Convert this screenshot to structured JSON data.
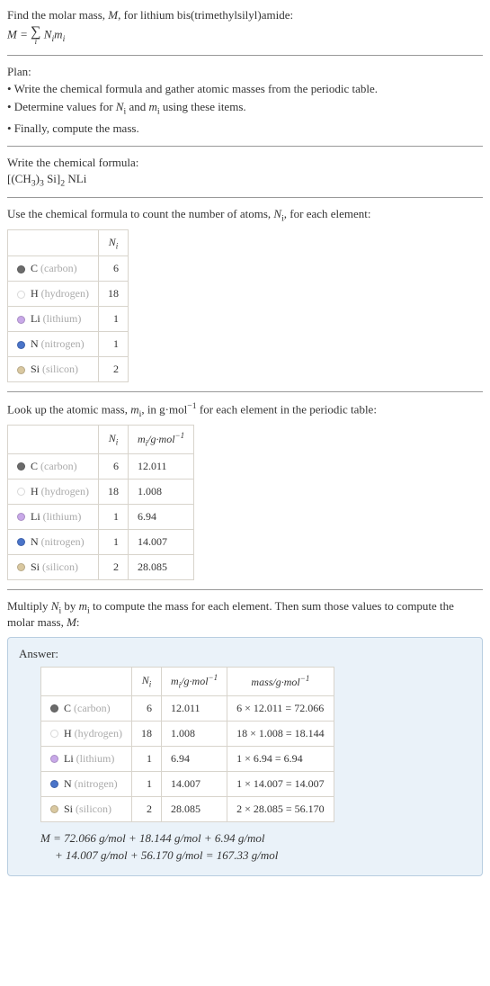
{
  "intro": {
    "line1_a": "Find the molar mass, ",
    "line1_M": "M",
    "line1_b": ", for lithium bis(trimethylsilyl)amide:",
    "eq_M": "M",
    "eq_equals": " = ",
    "eq_sigma": "∑",
    "eq_sigma_sub": "i",
    "eq_rhs_a": " N",
    "eq_rhs_i1": "i",
    "eq_rhs_b": "m",
    "eq_rhs_i2": "i"
  },
  "plan": {
    "title": "Plan:",
    "item1": "• Write the chemical formula and gather atomic masses from the periodic table.",
    "item2_a": "• Determine values for ",
    "item2_Ni_N": "N",
    "item2_Ni_i": "i",
    "item2_b": " and ",
    "item2_mi_m": "m",
    "item2_mi_i": "i",
    "item2_c": " using these items.",
    "item3": "• Finally, compute the mass."
  },
  "write": {
    "title": "Write the chemical formula:",
    "formula_a": "[(CH",
    "formula_3a": "3",
    "formula_b": ")",
    "formula_3b": "3",
    "formula_c": " Si]",
    "formula_2": "2",
    "formula_d": " NLi"
  },
  "count": {
    "text_a": "Use the chemical formula to count the number of atoms, ",
    "text_N": "N",
    "text_i": "i",
    "text_b": ", for each element:",
    "header_Ni_N": "N",
    "header_Ni_i": "i"
  },
  "elements": [
    {
      "sym": "C",
      "name": "(carbon)",
      "color": "#6b6b6b",
      "N": "6",
      "m": "12.011",
      "mass": "6 × 12.011 = 72.066"
    },
    {
      "sym": "H",
      "name": "(hydrogen)",
      "color": "#ffffff",
      "N": "18",
      "m": "1.008",
      "mass": "18 × 1.008 = 18.144"
    },
    {
      "sym": "Li",
      "name": "(lithium)",
      "color": "#c8a8e8",
      "N": "1",
      "m": "6.94",
      "mass": "1 × 6.94 = 6.94"
    },
    {
      "sym": "N",
      "name": "(nitrogen)",
      "color": "#4a74c9",
      "N": "1",
      "m": "14.007",
      "mass": "1 × 14.007 = 14.007"
    },
    {
      "sym": "Si",
      "name": "(silicon)",
      "color": "#d9c8a0",
      "N": "2",
      "m": "28.085",
      "mass": "2 × 28.085 = 56.170"
    }
  ],
  "lookup": {
    "text_a": "Look up the atomic mass, ",
    "text_m": "m",
    "text_i": "i",
    "text_b": ", in g·mol",
    "text_exp": "−1",
    "text_c": " for each element in the periodic table:",
    "hdr_Ni_N": "N",
    "hdr_Ni_i": "i",
    "hdr_mi_m": "m",
    "hdr_mi_i": "i",
    "hdr_unit_a": "/g·mol",
    "hdr_unit_exp": "−1"
  },
  "multiply": {
    "text_a": "Multiply ",
    "text_N": "N",
    "text_Ni": "i",
    "text_b": " by ",
    "text_m": "m",
    "text_mi": "i",
    "text_c": " to compute the mass for each element. Then sum those values to compute the molar mass, ",
    "text_M": "M",
    "text_d": ":"
  },
  "answer": {
    "title": "Answer:",
    "hdr_Ni_N": "N",
    "hdr_Ni_i": "i",
    "hdr_mi_m": "m",
    "hdr_mi_i": "i",
    "hdr_mi_unit": "/g·mol",
    "hdr_mi_exp": "−1",
    "hdr_mass": "mass/g·mol",
    "hdr_mass_exp": "−1",
    "eq_M": "M",
    "eq_line1": " = 72.066 g/mol + 18.144 g/mol + 6.94 g/mol",
    "eq_line2": "+ 14.007 g/mol + 56.170 g/mol = 167.33 g/mol"
  },
  "style": {
    "table_border": "#d8d4cc",
    "answer_bg": "#eaf2f9",
    "answer_border": "#b8cde0",
    "muted_text": "#aaaaaa"
  }
}
